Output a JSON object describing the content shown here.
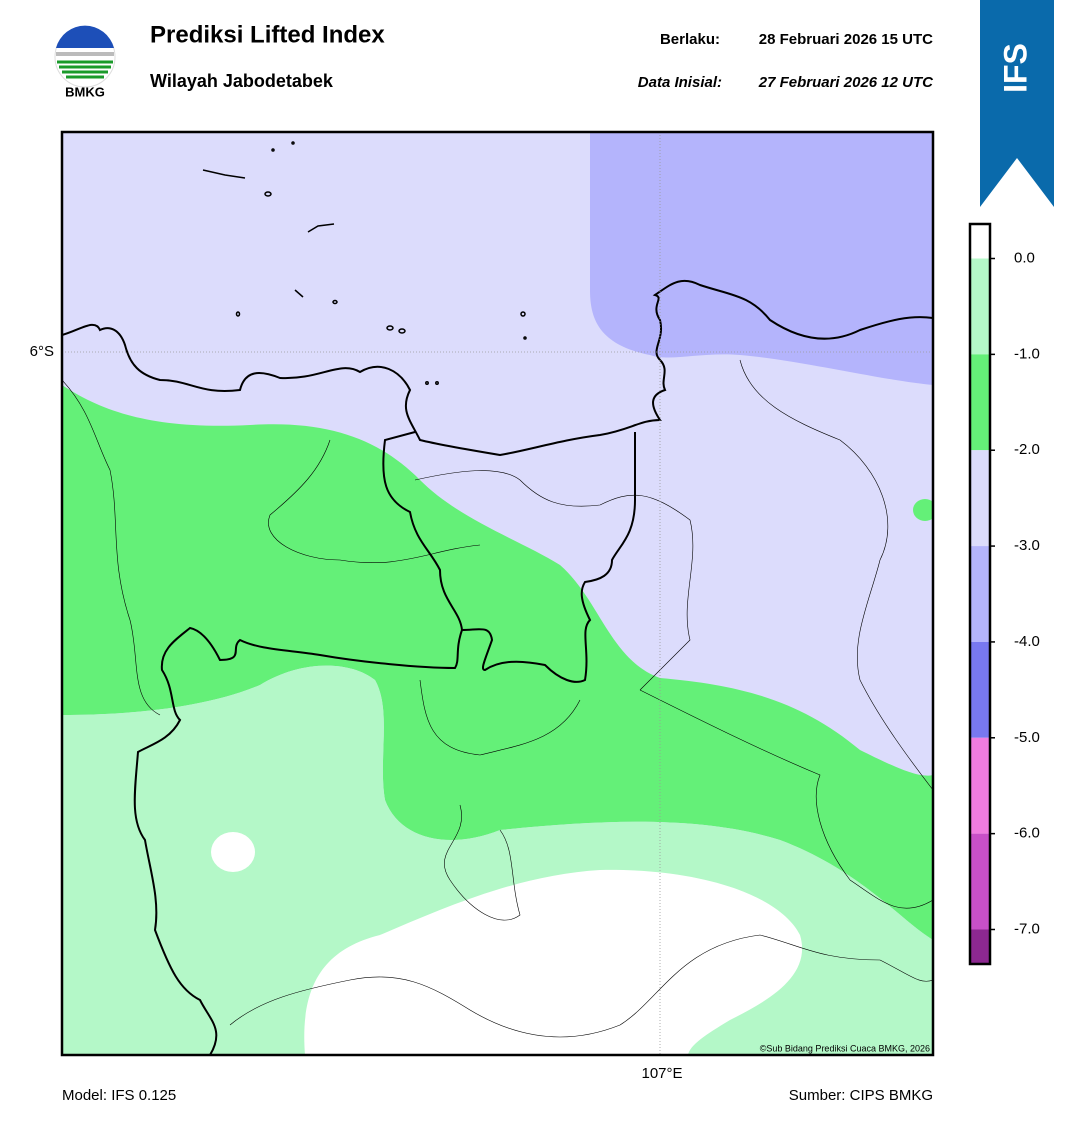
{
  "header": {
    "logo_text": "BMKG",
    "title": "Prediksi Lifted Index",
    "subtitle": "Wilayah Jabodetabek",
    "valid_label": "Berlaku:",
    "valid_time": "28 Februari 2026 15 UTC",
    "init_label": "Data Inisial:",
    "init_time": "27 Februari 2026 12 UTC",
    "badge": "IFS"
  },
  "map": {
    "lat_label": "6°S",
    "lon_label": "107°E",
    "credit": "©Sub Bidang Prediksi Cuaca BMKG, 2026"
  },
  "colorbar": {
    "range": [
      -7.36,
      0.36
    ],
    "ticks": [
      {
        "value": 0,
        "label": "0.0"
      },
      {
        "value": -1,
        "label": "-1.0"
      },
      {
        "value": -2,
        "label": "-2.0"
      },
      {
        "value": -3,
        "label": "-3.0"
      },
      {
        "value": -4,
        "label": "-4.0"
      },
      {
        "value": -5,
        "label": "-5.0"
      },
      {
        "value": -6,
        "label": "-6.0"
      },
      {
        "value": -7,
        "label": "-7.0"
      }
    ],
    "colors": [
      "#ffffff",
      "#b4f8c8",
      "#64f078",
      "#dcdcfc",
      "#b4b4fc",
      "#7878f0",
      "#f07ce0",
      "#c850c8",
      "#8c2890"
    ]
  },
  "footer": {
    "model": "Model: IFS 0.125",
    "source": "Sumber: CIPS BMKG"
  }
}
